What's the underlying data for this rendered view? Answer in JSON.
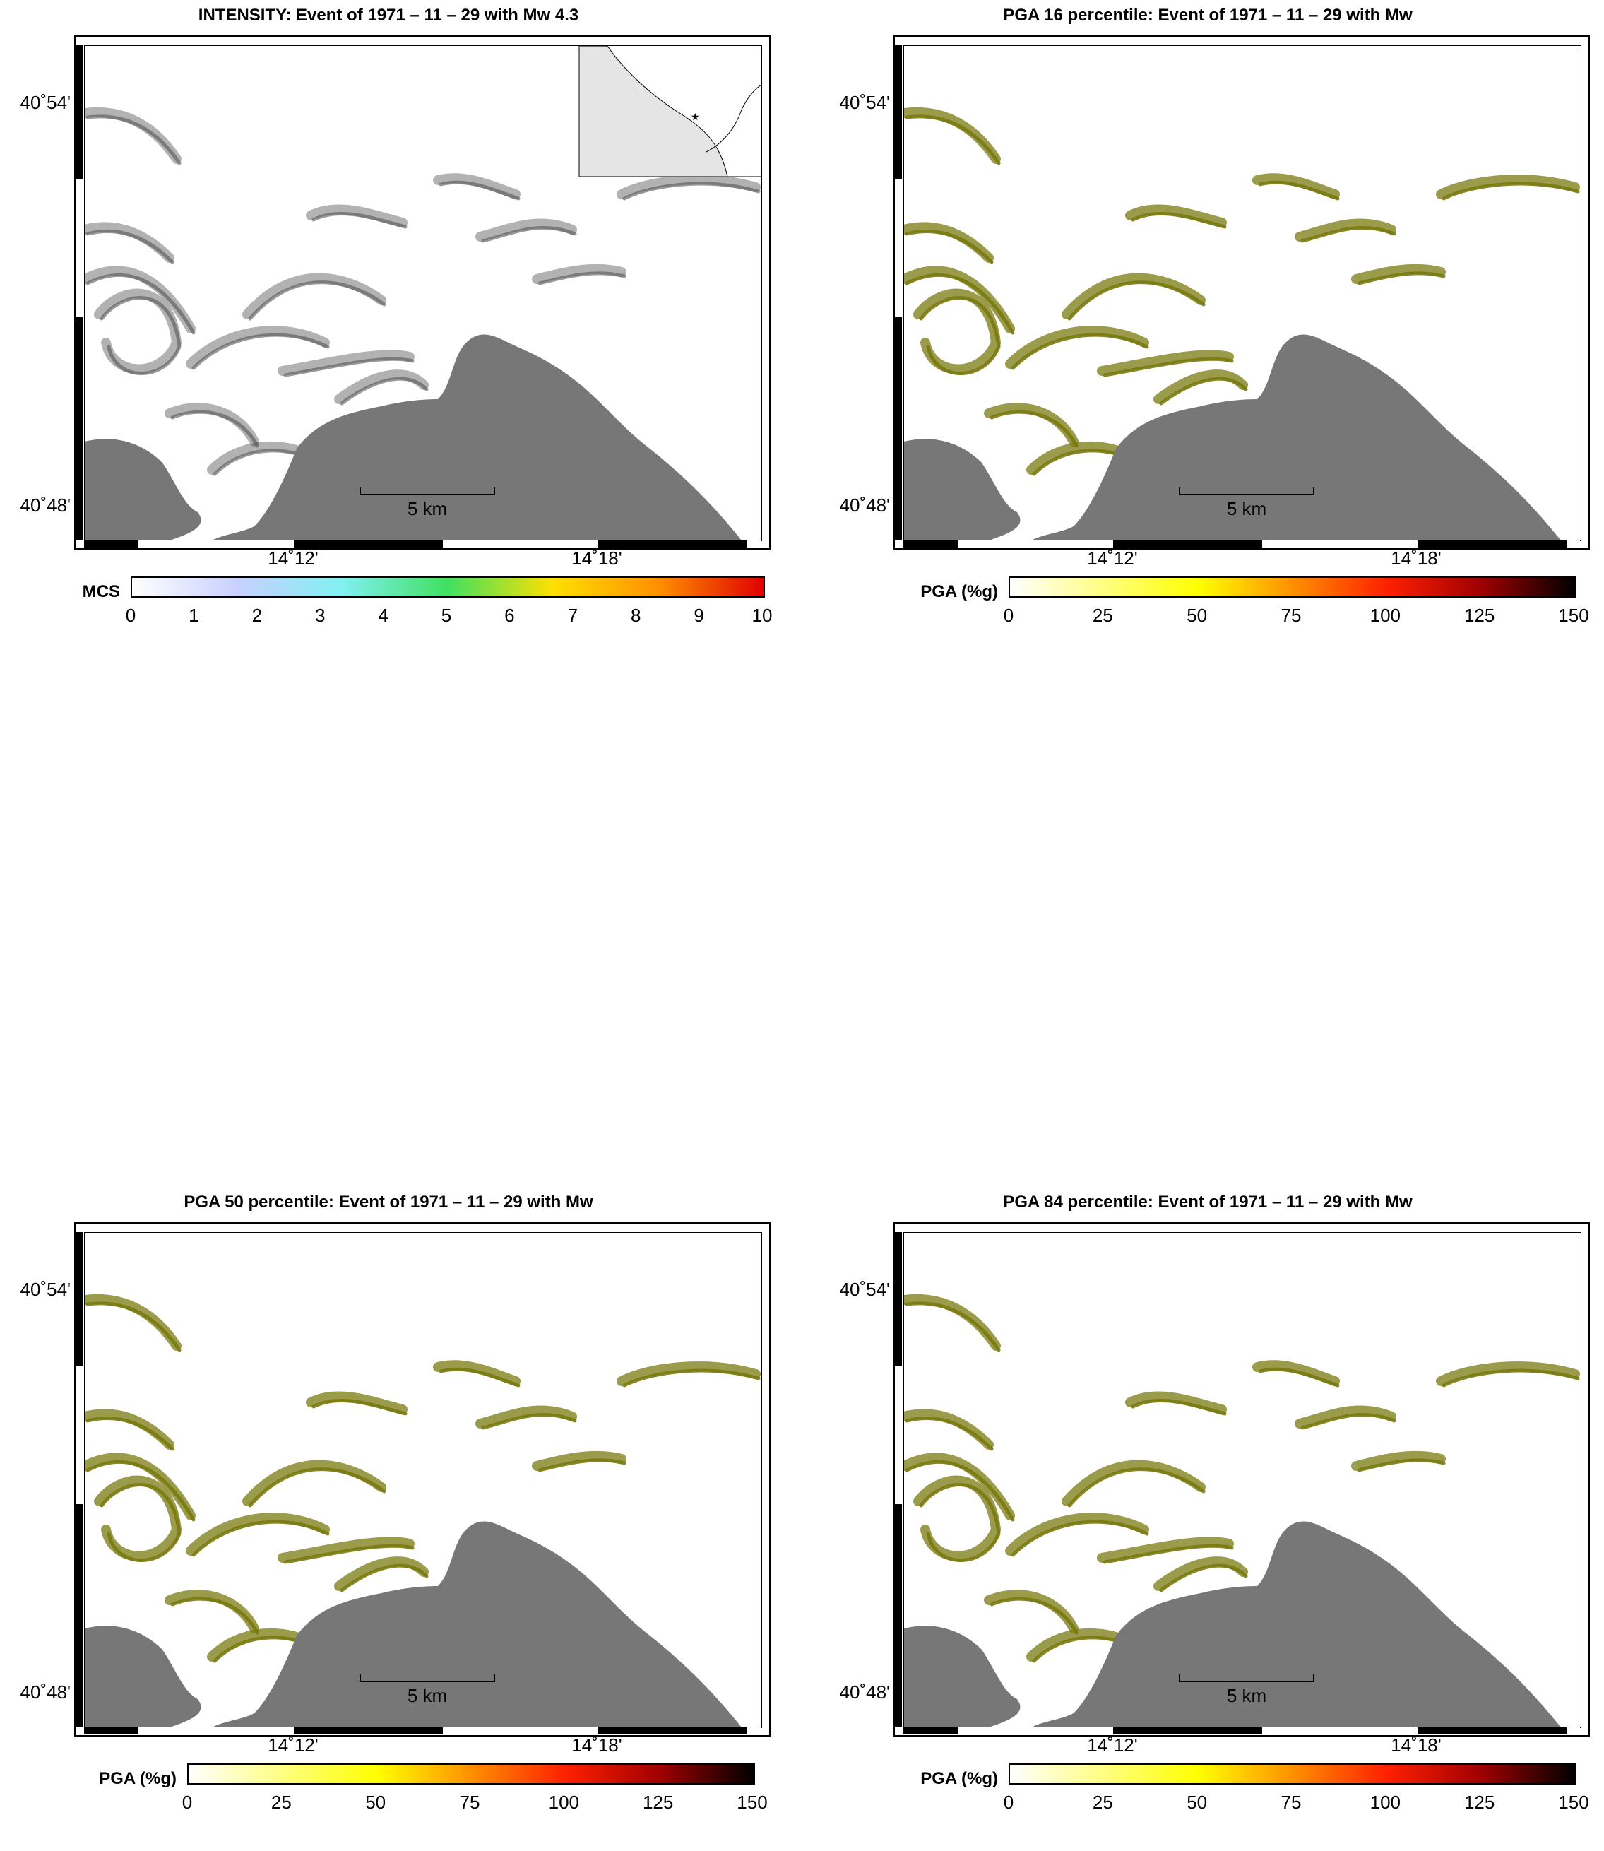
{
  "panels": [
    {
      "id": "intensity",
      "title": "INTENSITY: Event of 1971 – 11 – 29 with Mw 4.3",
      "colorbar_label": "MCS",
      "colorbar_ticks": [
        "0",
        "1",
        "2",
        "3",
        "4",
        "5",
        "6",
        "7",
        "8",
        "9",
        "10"
      ],
      "colorbar_colors": [
        "#ffffff",
        "#c8d0ff",
        "#80f0f0",
        "#40e060",
        "#ffe000",
        "#ff9000",
        "#e00000"
      ],
      "shade_color": "#555555",
      "show_inset": true
    },
    {
      "id": "pga16",
      "title": "PGA 16 percentile: Event of 1971 – 11 – 29 with Mw",
      "colorbar_label": "PGA (%g)",
      "colorbar_ticks": [
        "0",
        "25",
        "50",
        "75",
        "100",
        "125",
        "150"
      ],
      "colorbar_colors": [
        "#ffffff",
        "#ffff80",
        "#ffff00",
        "#ff9000",
        "#ff2000",
        "#a00000",
        "#000000"
      ],
      "shade_color": "#7a7a10",
      "show_inset": false
    },
    {
      "id": "pga50",
      "title": "PGA 50 percentile: Event of 1971 – 11 – 29 with Mw",
      "colorbar_label": "PGA (%g)",
      "colorbar_ticks": [
        "0",
        "25",
        "50",
        "75",
        "100",
        "125",
        "150"
      ],
      "colorbar_colors": [
        "#ffffff",
        "#ffff80",
        "#ffff00",
        "#ff9000",
        "#ff2000",
        "#a00000",
        "#000000"
      ],
      "shade_color": "#7a7a10",
      "show_inset": false
    },
    {
      "id": "pga84",
      "title": "PGA 84 percentile: Event of 1971 – 11 – 29 with Mw",
      "colorbar_label": "PGA (%g)",
      "colorbar_ticks": [
        "0",
        "25",
        "50",
        "75",
        "100",
        "125",
        "150"
      ],
      "colorbar_colors": [
        "#ffffff",
        "#ffff80",
        "#ffff00",
        "#ff9000",
        "#ff2000",
        "#a00000",
        "#000000"
      ],
      "shade_color": "#7a7a10",
      "show_inset": false
    }
  ],
  "map_labels": {
    "lat_top": "40˚54'",
    "lat_bottom": "40˚48'",
    "lon_left": "14˚12'",
    "lon_right": "14˚18'",
    "scale_bar": "5 km"
  },
  "colors": {
    "sea": "#777777",
    "land_base": "#ffffff",
    "inset_land": "#e5e5e5"
  }
}
